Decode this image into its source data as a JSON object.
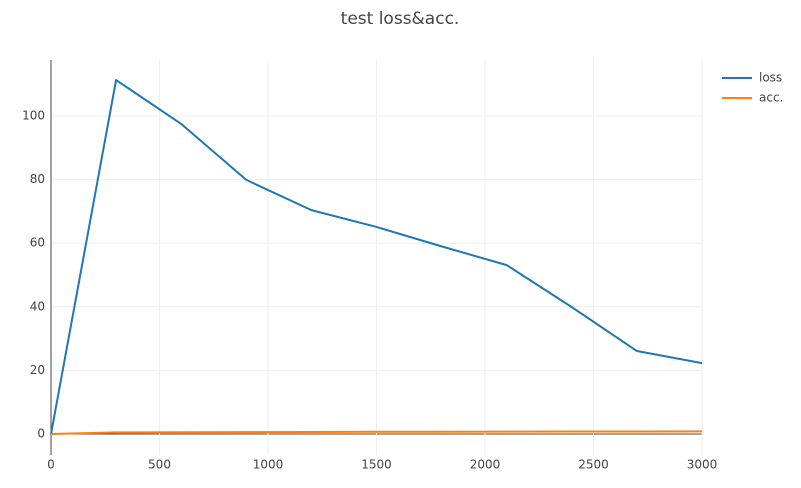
{
  "chart_data": {
    "type": "line",
    "title": "test loss&acc.",
    "x": [
      0,
      300,
      600,
      900,
      1200,
      1500,
      1800,
      2100,
      2400,
      2700,
      3000
    ],
    "series": [
      {
        "name": "loss",
        "color": "#1f77b4",
        "values": [
          0,
          111.3,
          97.5,
          79.9,
          70.4,
          65.1,
          59,
          53.1,
          39.9,
          26.1,
          22.3
        ]
      },
      {
        "name": "acc.",
        "color": "#ff7f0e",
        "values": [
          0,
          0.5,
          0.55,
          0.6,
          0.65,
          0.7,
          0.72,
          0.75,
          0.78,
          0.8,
          0.82
        ]
      }
    ],
    "xlim": [
      0,
      3000
    ],
    "xticks": [
      0,
      500,
      1000,
      1500,
      2000,
      2500,
      3000
    ],
    "ylim": [
      -6.6,
      117.6
    ],
    "yticks": [
      0,
      20,
      40,
      60,
      80,
      100
    ],
    "grid": true,
    "legend": "top-right"
  }
}
